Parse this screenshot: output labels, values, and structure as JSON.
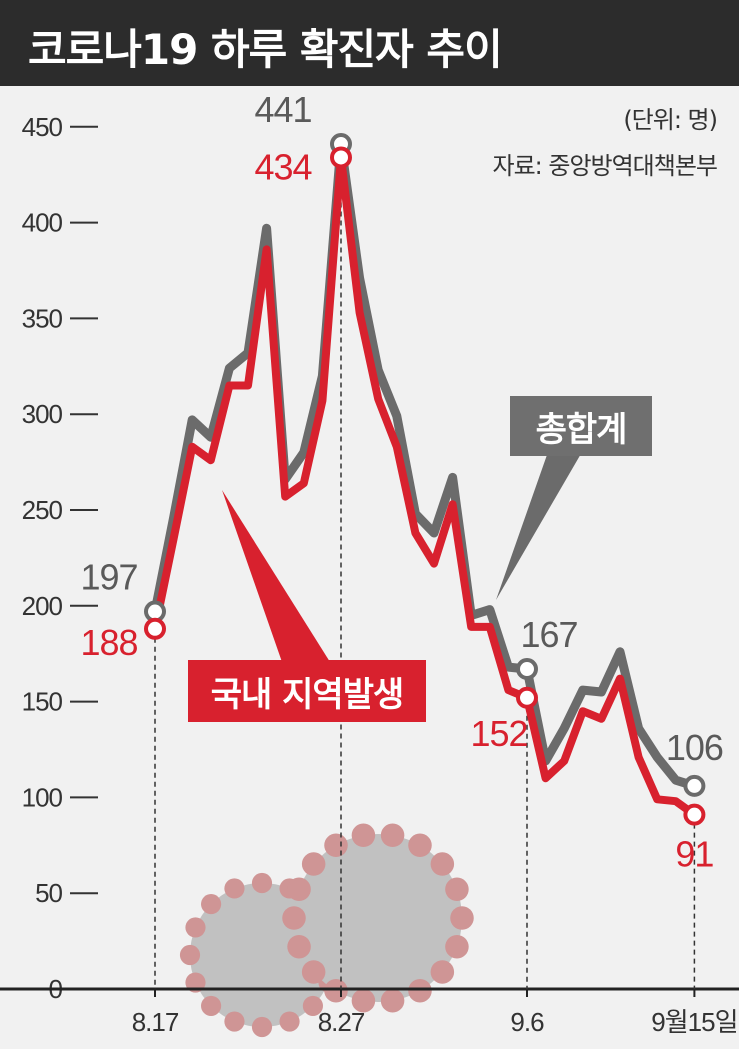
{
  "header": {
    "title": "코로나19 하루 확진자 추이"
  },
  "notes": {
    "unit": "(단위: 명)",
    "source": "자료: 중앙방역대책본부"
  },
  "colors": {
    "total": "#6b6b6b",
    "domestic": "#d8212e",
    "header_bg": "#2c2c2c",
    "background": "#f1f1f1"
  },
  "chart_data": {
    "type": "line",
    "title": "코로나19 하루 확진자 추이",
    "ylim": [
      0,
      450
    ],
    "yticks": [
      0,
      50,
      100,
      150,
      200,
      250,
      300,
      350,
      400,
      450
    ],
    "xtick_labels": [
      {
        "label": "8.17",
        "x_index": 0
      },
      {
        "label": "8.27",
        "x_index": 10
      },
      {
        "label": "9.6",
        "x_index": 20
      },
      {
        "label": "9월15일",
        "x_index": 29
      }
    ],
    "grid": false,
    "series": [
      {
        "name": "총합계",
        "values": [
          197,
          246,
          297,
          288,
          324,
          332,
          397,
          266,
          280,
          320,
          441,
          371,
          323,
          299,
          248,
          238,
          267,
          195,
          198,
          168,
          167,
          119,
          136,
          156,
          155,
          176,
          136,
          121,
          109,
          106
        ]
      },
      {
        "name": "국내 지역발생",
        "values": [
          188,
          235,
          283,
          276,
          315,
          315,
          386,
          257,
          264,
          307,
          434,
          353,
          308,
          283,
          238,
          222,
          253,
          189,
          189,
          156,
          152,
          110,
          119,
          145,
          141,
          162,
          121,
          99,
          98,
          91
        ]
      }
    ],
    "annotations": [
      {
        "series": "총합계",
        "x_index": 0,
        "label": "197"
      },
      {
        "series": "국내 지역발생",
        "x_index": 0,
        "label": "188"
      },
      {
        "series": "총합계",
        "x_index": 10,
        "label": "441"
      },
      {
        "series": "국내 지역발생",
        "x_index": 10,
        "label": "434"
      },
      {
        "series": "총합계",
        "x_index": 20,
        "label": "167"
      },
      {
        "series": "국내 지역발생",
        "x_index": 20,
        "label": "152"
      },
      {
        "series": "총합계",
        "x_index": 29,
        "label": "106"
      },
      {
        "series": "국내 지역발생",
        "x_index": 29,
        "label": "91"
      }
    ]
  },
  "callouts": {
    "total": "총합계",
    "domestic": "국내 지역발생"
  }
}
